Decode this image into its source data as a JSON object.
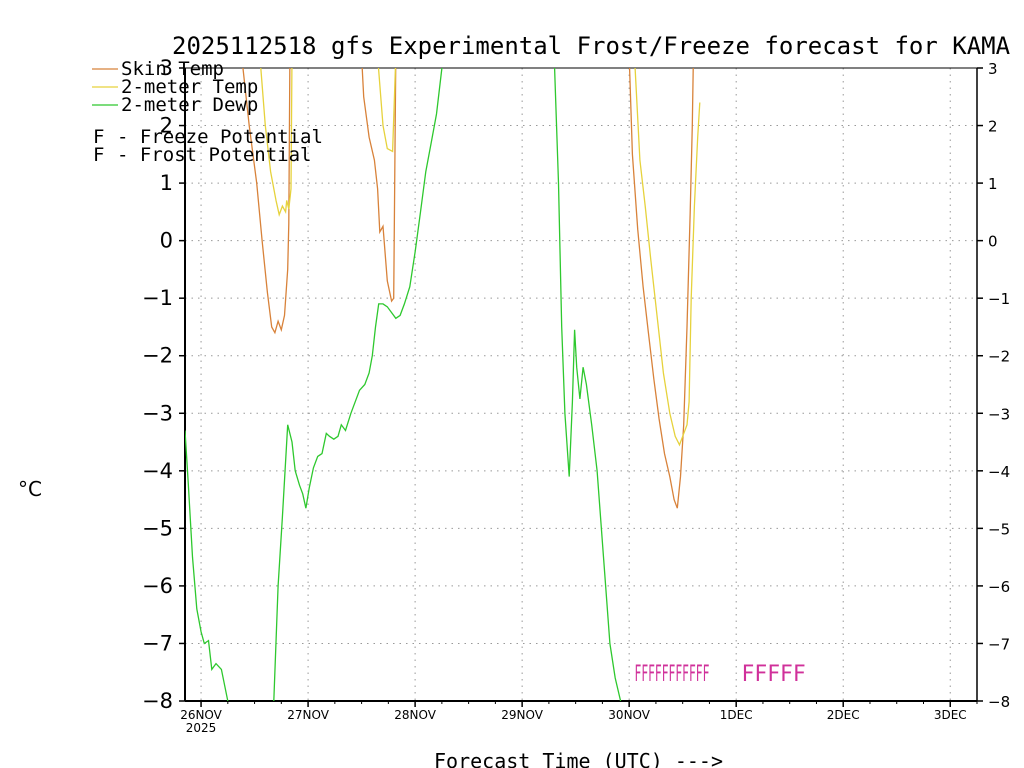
{
  "chart_data": {
    "type": "line",
    "title": "2025112518 gfs Experimental Frost/Freeze forecast for KAMA",
    "xlabel": "Forecast Time (UTC) --->",
    "ylabel": "°C",
    "ylim": [
      -8,
      3
    ],
    "yticks": [
      3,
      2,
      1,
      0,
      -1,
      -2,
      -3,
      -4,
      -5,
      -6,
      -7,
      -8
    ],
    "xlim_days": [
      -0.15,
      7.25
    ],
    "x_unit": "days since 26NOV2025 00Z",
    "xticks": [
      {
        "day": 0,
        "label": "26NOV",
        "sublabel": "2025"
      },
      {
        "day": 1,
        "label": "27NOV",
        "sublabel": ""
      },
      {
        "day": 2,
        "label": "28NOV",
        "sublabel": ""
      },
      {
        "day": 3,
        "label": "29NOV",
        "sublabel": ""
      },
      {
        "day": 4,
        "label": "30NOV",
        "sublabel": ""
      },
      {
        "day": 5,
        "label": "1DEC",
        "sublabel": ""
      },
      {
        "day": 6,
        "label": "2DEC",
        "sublabel": ""
      },
      {
        "day": 7,
        "label": "3DEC",
        "sublabel": ""
      }
    ],
    "grid": true,
    "legend": {
      "position": "top-left",
      "series_entries": [
        "Skin Temp",
        "2-meter Temp",
        "2-meter Dewp"
      ],
      "potential_entries": [
        {
          "letter": "F",
          "text": "- Freeze Potential",
          "color": "#d0309a"
        },
        {
          "letter": "F",
          "text": "- Frost Potential",
          "color": "#5050e0"
        }
      ]
    },
    "series": [
      {
        "name": "Skin Temp",
        "color": "#d8823a",
        "points": [
          [
            0.38,
            3.2
          ],
          [
            0.45,
            2.0
          ],
          [
            0.52,
            1.0
          ],
          [
            0.57,
            0.0
          ],
          [
            0.62,
            -0.9
          ],
          [
            0.66,
            -1.5
          ],
          [
            0.69,
            -1.6
          ],
          [
            0.72,
            -1.4
          ],
          [
            0.75,
            -1.55
          ],
          [
            0.78,
            -1.3
          ],
          [
            0.81,
            -0.5
          ],
          [
            0.82,
            0.3
          ],
          [
            0.83,
            3.2
          ],
          null,
          [
            1.5,
            3.2
          ],
          [
            1.52,
            2.5
          ],
          [
            1.57,
            1.8
          ],
          [
            1.62,
            1.4
          ],
          [
            1.65,
            0.9
          ],
          [
            1.67,
            0.15
          ],
          [
            1.7,
            0.25
          ],
          [
            1.74,
            -0.7
          ],
          [
            1.78,
            -1.05
          ],
          [
            1.8,
            -1.0
          ],
          [
            1.82,
            3.2
          ],
          null,
          [
            4.0,
            3.2
          ],
          [
            4.03,
            1.5
          ],
          [
            4.08,
            0.2
          ],
          [
            4.13,
            -0.8
          ],
          [
            4.18,
            -1.6
          ],
          [
            4.23,
            -2.4
          ],
          [
            4.28,
            -3.1
          ],
          [
            4.33,
            -3.7
          ],
          [
            4.38,
            -4.1
          ],
          [
            4.42,
            -4.5
          ],
          [
            4.45,
            -4.65
          ],
          [
            4.48,
            -4.1
          ],
          [
            4.51,
            -3.2
          ],
          [
            4.54,
            -1.5
          ],
          [
            4.57,
            0.5
          ],
          [
            4.59,
            2.0
          ],
          [
            4.6,
            3.2
          ]
        ]
      },
      {
        "name": "2-meter Temp",
        "color": "#e6d23c",
        "points": [
          [
            0.55,
            3.2
          ],
          [
            0.6,
            2.0
          ],
          [
            0.65,
            1.2
          ],
          [
            0.7,
            0.7
          ],
          [
            0.73,
            0.45
          ],
          [
            0.76,
            0.6
          ],
          [
            0.79,
            0.5
          ],
          [
            0.8,
            0.7
          ],
          [
            0.82,
            0.55
          ],
          [
            0.84,
            0.9
          ],
          [
            0.85,
            3.2
          ],
          null,
          [
            1.65,
            3.2
          ],
          [
            1.7,
            2.0
          ],
          [
            1.74,
            1.6
          ],
          [
            1.79,
            1.55
          ],
          [
            1.82,
            3.2
          ],
          null,
          [
            4.05,
            3.2
          ],
          [
            4.1,
            1.4
          ],
          [
            4.15,
            0.6
          ],
          [
            4.2,
            -0.3
          ],
          [
            4.26,
            -1.3
          ],
          [
            4.32,
            -2.3
          ],
          [
            4.38,
            -3.0
          ],
          [
            4.43,
            -3.4
          ],
          [
            4.47,
            -3.55
          ],
          [
            4.5,
            -3.4
          ],
          [
            4.54,
            -3.2
          ],
          [
            4.56,
            -2.8
          ],
          [
            4.58,
            -1.0
          ],
          [
            4.61,
            0.6
          ],
          [
            4.64,
            1.8
          ],
          [
            4.66,
            2.4
          ]
        ]
      },
      {
        "name": "2-meter Dewp",
        "color": "#2ec82e",
        "points": [
          [
            -0.15,
            -3.3
          ],
          [
            -0.12,
            -4.2
          ],
          [
            -0.08,
            -5.5
          ],
          [
            -0.04,
            -6.4
          ],
          [
            0.0,
            -6.8
          ],
          [
            0.03,
            -7.0
          ],
          [
            0.07,
            -6.95
          ],
          [
            0.1,
            -7.45
          ],
          [
            0.14,
            -7.35
          ],
          [
            0.19,
            -7.45
          ],
          [
            0.25,
            -8.0
          ],
          null,
          [
            0.68,
            -8.0
          ],
          [
            0.72,
            -6.0
          ],
          [
            0.76,
            -4.8
          ],
          [
            0.81,
            -3.2
          ],
          [
            0.85,
            -3.5
          ],
          [
            0.88,
            -4.0
          ],
          [
            0.92,
            -4.25
          ],
          [
            0.95,
            -4.4
          ],
          [
            0.98,
            -4.65
          ],
          [
            1.01,
            -4.3
          ],
          [
            1.05,
            -3.95
          ],
          [
            1.09,
            -3.75
          ],
          [
            1.13,
            -3.7
          ],
          [
            1.17,
            -3.35
          ],
          [
            1.2,
            -3.4
          ],
          [
            1.24,
            -3.45
          ],
          [
            1.28,
            -3.4
          ],
          [
            1.31,
            -3.2
          ],
          [
            1.35,
            -3.3
          ],
          [
            1.4,
            -3.0
          ],
          [
            1.44,
            -2.8
          ],
          [
            1.48,
            -2.6
          ],
          [
            1.53,
            -2.5
          ],
          [
            1.57,
            -2.3
          ],
          [
            1.6,
            -2.0
          ],
          [
            1.63,
            -1.5
          ],
          [
            1.66,
            -1.1
          ],
          [
            1.7,
            -1.1
          ],
          [
            1.74,
            -1.15
          ],
          [
            1.78,
            -1.25
          ],
          [
            1.82,
            -1.35
          ],
          [
            1.86,
            -1.3
          ],
          [
            1.9,
            -1.1
          ],
          [
            1.95,
            -0.8
          ],
          [
            2.0,
            -0.2
          ],
          [
            2.05,
            0.5
          ],
          [
            2.1,
            1.2
          ],
          [
            2.15,
            1.7
          ],
          [
            2.2,
            2.2
          ],
          [
            2.25,
            3.0
          ],
          [
            2.29,
            3.2
          ],
          null,
          [
            3.3,
            3.2
          ],
          [
            3.34,
            1.0
          ],
          [
            3.37,
            -1.5
          ],
          [
            3.4,
            -3.0
          ],
          [
            3.44,
            -4.1
          ],
          [
            3.47,
            -2.8
          ],
          [
            3.49,
            -1.55
          ],
          [
            3.51,
            -2.2
          ],
          [
            3.54,
            -2.75
          ],
          [
            3.57,
            -2.2
          ],
          [
            3.6,
            -2.5
          ],
          [
            3.65,
            -3.2
          ],
          [
            3.7,
            -4.0
          ],
          [
            3.76,
            -5.5
          ],
          [
            3.82,
            -7.0
          ],
          [
            3.87,
            -7.6
          ],
          [
            3.92,
            -8.0
          ]
        ]
      }
    ],
    "freeze_potential": {
      "color": "#d0309a",
      "groups": [
        {
          "label": "FFFFFFFFFFF",
          "start_day": 4.05,
          "end_day": 4.75
        },
        {
          "label": "FFFFF",
          "start_day": 5.05,
          "end_day": 5.65
        }
      ]
    }
  }
}
